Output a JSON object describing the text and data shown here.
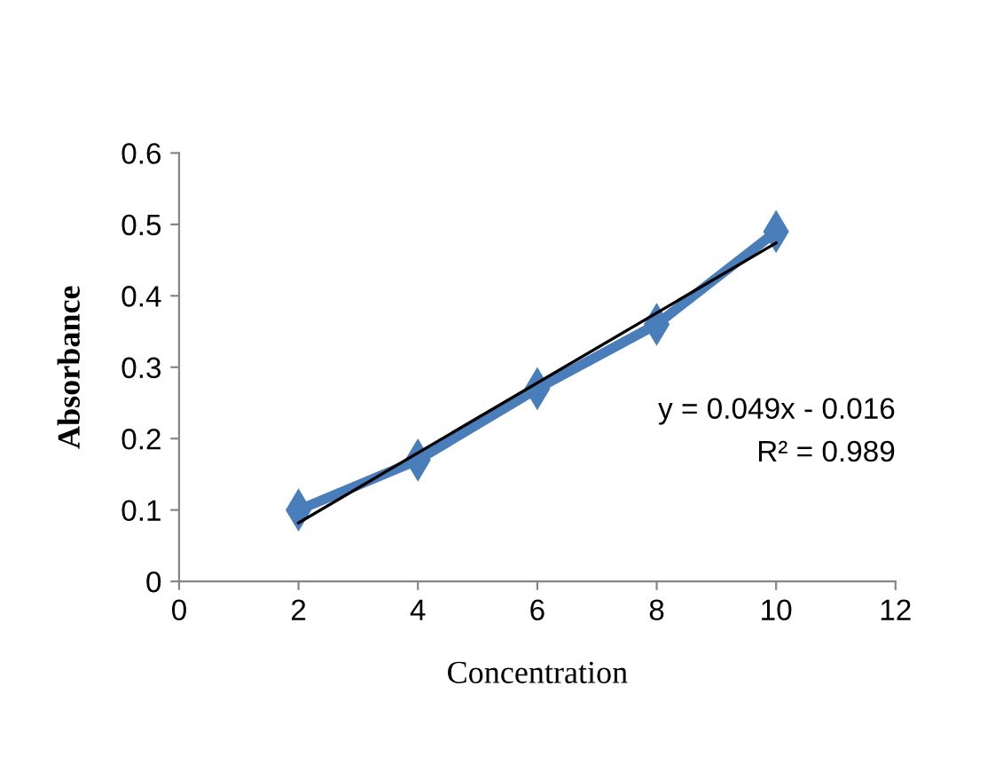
{
  "chart_data": {
    "type": "line",
    "xlabel": "Concentration",
    "ylabel": "Absorbance",
    "xlim": [
      0,
      12
    ],
    "xticks": [
      0,
      2,
      4,
      6,
      8,
      10,
      12
    ],
    "ylim": [
      0,
      0.6
    ],
    "yticks": [
      0,
      0.1,
      0.2,
      0.3,
      0.4,
      0.5,
      0.6
    ],
    "grid": false,
    "legend": false,
    "series": [
      {
        "color": "#4a7ebb",
        "x": [
          2,
          4,
          6,
          8,
          10
        ],
        "values": [
          0.1,
          0.17,
          0.27,
          0.36,
          0.49
        ],
        "marker": "diamond"
      },
      {
        "color": "#000000",
        "x": [
          2,
          10
        ],
        "values": [
          0.082,
          0.474
        ],
        "marker": "none"
      }
    ],
    "annotations": [
      "y = 0.049x - 0.016",
      "R² = 0.989"
    ]
  }
}
